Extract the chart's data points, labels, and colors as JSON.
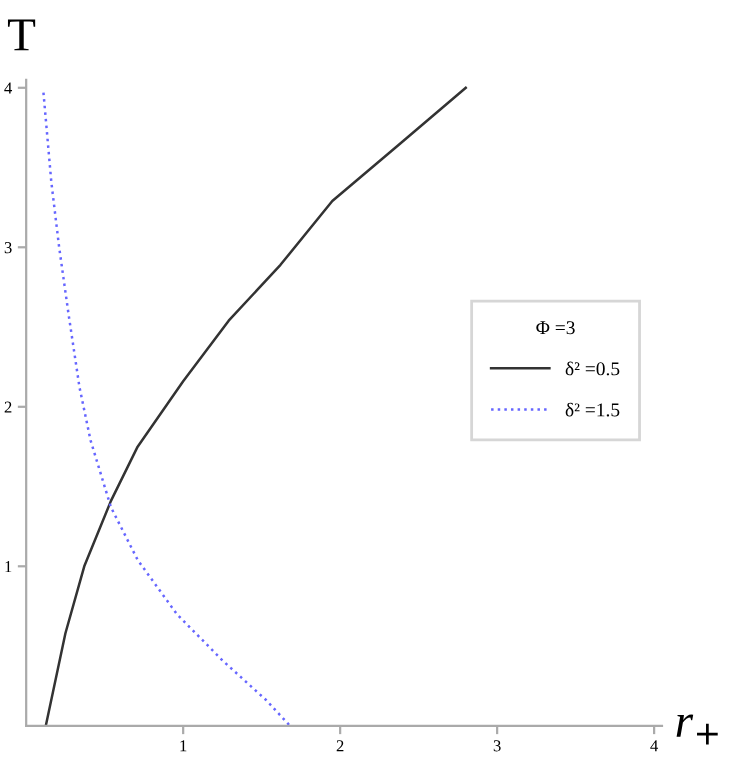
{
  "chart_data": {
    "type": "line",
    "xlabel": "r$_{+}$",
    "ylabel": "T",
    "legend_title": "Φ =3",
    "xlim": [
      0,
      4.05
    ],
    "ylim": [
      0,
      4.05
    ],
    "xticks": [
      1,
      2,
      3,
      4
    ],
    "yticks": [
      1,
      2,
      3,
      4
    ],
    "grid": false,
    "legend": "right",
    "series": [
      {
        "name": "δ² =0.5",
        "color": "#333333",
        "line_style": "solid",
        "x": [
          0.125,
          0.25,
          0.37,
          0.54,
          0.71,
          1.0,
          1.29,
          1.62,
          1.95,
          2.37,
          2.8
        ],
        "values": [
          0,
          0.58,
          1.0,
          1.41,
          1.75,
          2.16,
          2.54,
          2.89,
          3.29,
          3.64,
          4.0
        ]
      },
      {
        "name": "δ² =1.5",
        "color": "#6666ff",
        "line_style": "dotted",
        "x": [
          0.11,
          0.16,
          0.21,
          0.27,
          0.34,
          0.41,
          0.54,
          0.71,
          0.96,
          1.25,
          1.53,
          1.68
        ],
        "values": [
          3.97,
          3.41,
          3.0,
          2.58,
          2.12,
          1.79,
          1.37,
          1.04,
          0.7,
          0.41,
          0.16,
          0
        ]
      }
    ]
  }
}
